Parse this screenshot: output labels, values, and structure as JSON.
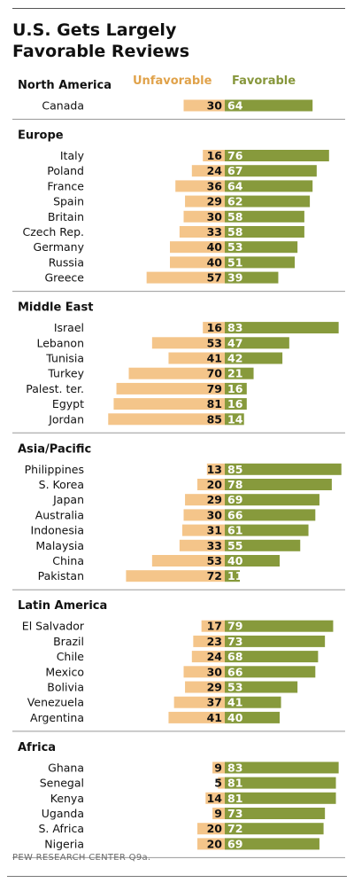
{
  "title_line1": "U.S. Gets Largely",
  "title_line2": "Favorable Reviews",
  "legend": {
    "unfavorable": "Unfavorable",
    "favorable": "Favorable"
  },
  "source": "PEW RESEARCH CENTER Q9a.",
  "colors": {
    "unfavorable": "#f4c58a",
    "favorable": "#879a3c",
    "unfavorable_text": "#e0a24a",
    "favorable_text": "#87973c"
  },
  "chart_data": {
    "type": "bar",
    "orientation": "diverging-horizontal",
    "series": [
      {
        "name": "Unfavorable"
      },
      {
        "name": "Favorable"
      }
    ],
    "groups": [
      {
        "name": "North America",
        "rows": [
          {
            "country": "Canada",
            "unfavorable": 30,
            "favorable": 64
          }
        ]
      },
      {
        "name": "Europe",
        "rows": [
          {
            "country": "Italy",
            "unfavorable": 16,
            "favorable": 76
          },
          {
            "country": "Poland",
            "unfavorable": 24,
            "favorable": 67
          },
          {
            "country": "France",
            "unfavorable": 36,
            "favorable": 64
          },
          {
            "country": "Spain",
            "unfavorable": 29,
            "favorable": 62
          },
          {
            "country": "Britain",
            "unfavorable": 30,
            "favorable": 58
          },
          {
            "country": "Czech Rep.",
            "unfavorable": 33,
            "favorable": 58
          },
          {
            "country": "Germany",
            "unfavorable": 40,
            "favorable": 53
          },
          {
            "country": "Russia",
            "unfavorable": 40,
            "favorable": 51
          },
          {
            "country": "Greece",
            "unfavorable": 57,
            "favorable": 39
          }
        ]
      },
      {
        "name": "Middle East",
        "rows": [
          {
            "country": "Israel",
            "unfavorable": 16,
            "favorable": 83
          },
          {
            "country": "Lebanon",
            "unfavorable": 53,
            "favorable": 47
          },
          {
            "country": "Tunisia",
            "unfavorable": 41,
            "favorable": 42
          },
          {
            "country": "Turkey",
            "unfavorable": 70,
            "favorable": 21
          },
          {
            "country": "Palest. ter.",
            "unfavorable": 79,
            "favorable": 16
          },
          {
            "country": "Egypt",
            "unfavorable": 81,
            "favorable": 16
          },
          {
            "country": "Jordan",
            "unfavorable": 85,
            "favorable": 14
          }
        ]
      },
      {
        "name": "Asia/Pacific",
        "rows": [
          {
            "country": "Philippines",
            "unfavorable": 13,
            "favorable": 85
          },
          {
            "country": "S. Korea",
            "unfavorable": 20,
            "favorable": 78
          },
          {
            "country": "Japan",
            "unfavorable": 29,
            "favorable": 69
          },
          {
            "country": "Australia",
            "unfavorable": 30,
            "favorable": 66
          },
          {
            "country": "Indonesia",
            "unfavorable": 31,
            "favorable": 61
          },
          {
            "country": "Malaysia",
            "unfavorable": 33,
            "favorable": 55
          },
          {
            "country": "China",
            "unfavorable": 53,
            "favorable": 40
          },
          {
            "country": "Pakistan",
            "unfavorable": 72,
            "favorable": 11
          }
        ]
      },
      {
        "name": "Latin America",
        "rows": [
          {
            "country": "El Salvador",
            "unfavorable": 17,
            "favorable": 79
          },
          {
            "country": "Brazil",
            "unfavorable": 23,
            "favorable": 73
          },
          {
            "country": "Chile",
            "unfavorable": 24,
            "favorable": 68
          },
          {
            "country": "Mexico",
            "unfavorable": 30,
            "favorable": 66
          },
          {
            "country": "Bolivia",
            "unfavorable": 29,
            "favorable": 53
          },
          {
            "country": "Venezuela",
            "unfavorable": 37,
            "favorable": 41
          },
          {
            "country": "Argentina",
            "unfavorable": 41,
            "favorable": 40
          }
        ]
      },
      {
        "name": "Africa",
        "rows": [
          {
            "country": "Ghana",
            "unfavorable": 9,
            "favorable": 83
          },
          {
            "country": "Senegal",
            "unfavorable": 5,
            "favorable": 81
          },
          {
            "country": "Kenya",
            "unfavorable": 14,
            "favorable": 81
          },
          {
            "country": "Uganda",
            "unfavorable": 9,
            "favorable": 73
          },
          {
            "country": "S. Africa",
            "unfavorable": 20,
            "favorable": 72
          },
          {
            "country": "Nigeria",
            "unfavorable": 20,
            "favorable": 69
          }
        ]
      }
    ]
  }
}
